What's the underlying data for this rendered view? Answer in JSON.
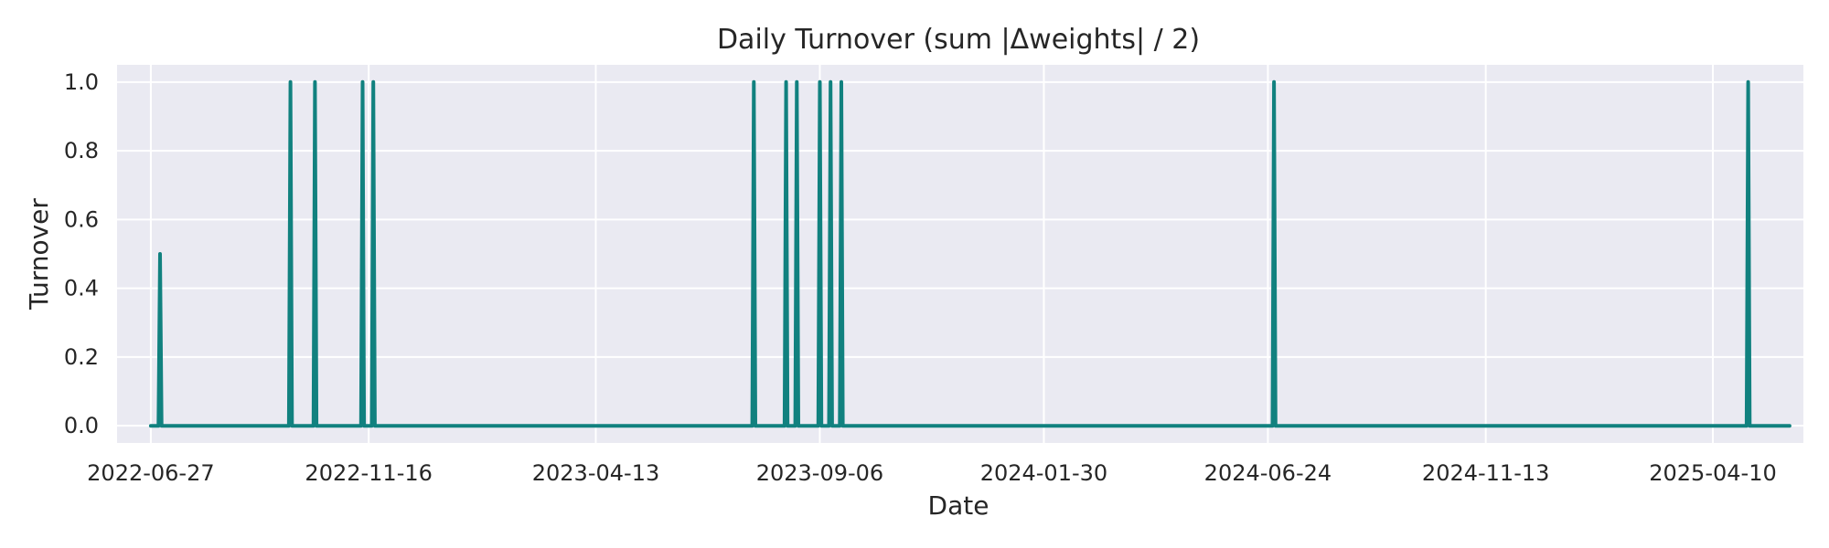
{
  "chart_data": {
    "type": "line",
    "title": "Daily Turnover (sum |Δweights| / 2)",
    "xlabel": "Date",
    "ylabel": "Turnover",
    "ylim": [
      -0.05,
      1.05
    ],
    "xlim": [
      "2022-06-05",
      "2025-06-08"
    ],
    "x_ticks": [
      "2022-06-27",
      "2022-11-16",
      "2023-04-13",
      "2023-09-06",
      "2024-01-30",
      "2024-06-24",
      "2024-11-13",
      "2025-04-10"
    ],
    "y_ticks": [
      0.0,
      0.2,
      0.4,
      0.6,
      0.8,
      1.0
    ],
    "y_tick_labels": [
      "0.0",
      "0.2",
      "0.4",
      "0.6",
      "0.8",
      "1.0"
    ],
    "grid": true,
    "background": "#eaeaf2",
    "line_color": "#11817f",
    "series": [
      {
        "name": "",
        "points": [
          [
            "2022-06-27",
            0.0
          ],
          [
            "2022-07-02",
            0.0
          ],
          [
            "2022-07-03",
            0.5
          ],
          [
            "2022-07-04",
            0.0
          ],
          [
            "2022-09-25",
            0.0
          ],
          [
            "2022-09-26",
            1.0
          ],
          [
            "2022-09-27",
            0.0
          ],
          [
            "2022-10-11",
            0.0
          ],
          [
            "2022-10-12",
            1.0
          ],
          [
            "2022-10-13",
            0.0
          ],
          [
            "2022-11-11",
            0.0
          ],
          [
            "2022-11-12",
            1.0
          ],
          [
            "2022-11-13",
            0.0
          ],
          [
            "2022-11-18",
            0.0
          ],
          [
            "2022-11-19",
            1.0
          ],
          [
            "2022-11-20",
            0.0
          ],
          [
            "2023-07-24",
            0.0
          ],
          [
            "2023-07-25",
            1.0
          ],
          [
            "2023-07-26",
            0.0
          ],
          [
            "2023-08-14",
            0.0
          ],
          [
            "2023-08-15",
            1.0
          ],
          [
            "2023-08-16",
            0.0
          ],
          [
            "2023-08-21",
            0.0
          ],
          [
            "2023-08-22",
            1.0
          ],
          [
            "2023-08-23",
            0.0
          ],
          [
            "2023-09-05",
            0.0
          ],
          [
            "2023-09-06",
            1.0
          ],
          [
            "2023-09-07",
            0.0
          ],
          [
            "2023-09-12",
            0.0
          ],
          [
            "2023-09-13",
            1.0
          ],
          [
            "2023-09-14",
            0.0
          ],
          [
            "2023-09-19",
            0.0
          ],
          [
            "2023-09-20",
            1.0
          ],
          [
            "2023-09-21",
            0.0
          ],
          [
            "2024-06-27",
            0.0
          ],
          [
            "2024-06-28",
            1.0
          ],
          [
            "2024-06-29",
            0.0
          ],
          [
            "2025-05-02",
            0.0
          ],
          [
            "2025-05-03",
            1.0
          ],
          [
            "2025-05-04",
            0.0
          ],
          [
            "2025-05-30",
            0.0
          ]
        ]
      }
    ]
  }
}
